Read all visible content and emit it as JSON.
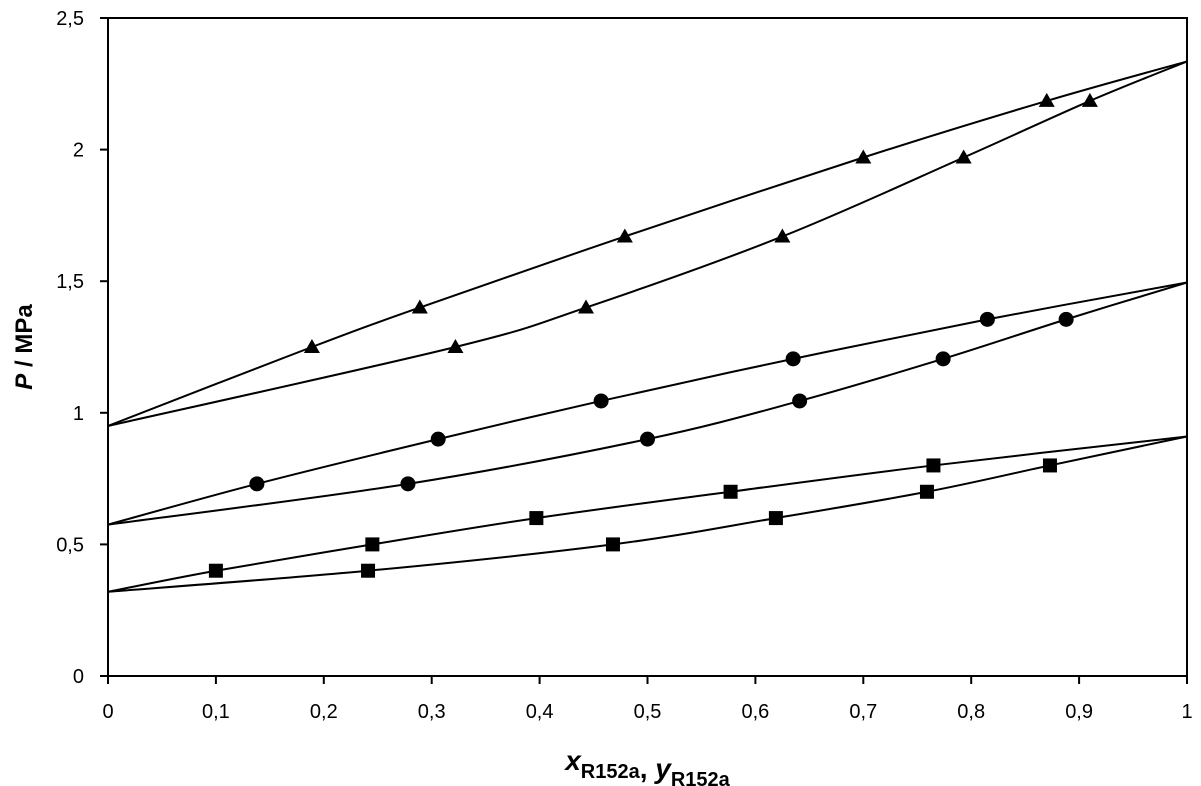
{
  "chart_data": {
    "type": "scatter",
    "title": "",
    "xlabel": {
      "parts": [
        {
          "italic": "x",
          "sub": "R152a"
        },
        {
          "text": ", "
        },
        {
          "italic": "y",
          "sub": "R152a"
        }
      ]
    },
    "ylabel": {
      "italic": "P",
      "text": " / MPa"
    },
    "xlim": [
      0,
      1
    ],
    "ylim": [
      0,
      2.5
    ],
    "xticks": [
      0,
      0.1,
      0.2,
      0.3,
      0.4,
      0.5,
      0.6,
      0.7,
      0.8,
      0.9,
      1
    ],
    "xtick_labels": [
      "0",
      "0,1",
      "0,2",
      "0,3",
      "0,4",
      "0,5",
      "0,6",
      "0,7",
      "0,8",
      "0,9",
      "1"
    ],
    "yticks": [
      0,
      0.5,
      1,
      1.5,
      2,
      2.5
    ],
    "ytick_labels": [
      "0",
      "0,5",
      "1",
      "1,5",
      "2",
      "2,5"
    ],
    "grid": false,
    "legend": "none",
    "colors": {
      "marker": "#000000",
      "line": "#000000",
      "axis": "#000000"
    },
    "series": [
      {
        "marker": "square",
        "points": [
          [
            0.1,
            0.4
          ],
          [
            0.245,
            0.5
          ],
          [
            0.397,
            0.6
          ],
          [
            0.577,
            0.7
          ],
          [
            0.765,
            0.8
          ],
          [
            0.241,
            0.4
          ],
          [
            0.468,
            0.5
          ],
          [
            0.619,
            0.6
          ],
          [
            0.759,
            0.7
          ],
          [
            0.873,
            0.8
          ]
        ],
        "curves": [
          [
            [
              0,
              0.32
            ],
            [
              0.1,
              0.4
            ],
            [
              0.245,
              0.5
            ],
            [
              0.397,
              0.6
            ],
            [
              0.577,
              0.7
            ],
            [
              0.765,
              0.8
            ],
            [
              1,
              0.91
            ]
          ],
          [
            [
              0,
              0.32
            ],
            [
              0.241,
              0.4
            ],
            [
              0.468,
              0.5
            ],
            [
              0.619,
              0.6
            ],
            [
              0.759,
              0.7
            ],
            [
              0.873,
              0.8
            ],
            [
              1,
              0.91
            ]
          ]
        ]
      },
      {
        "marker": "circle",
        "points": [
          [
            0.138,
            0.73
          ],
          [
            0.306,
            0.9
          ],
          [
            0.457,
            1.045
          ],
          [
            0.635,
            1.205
          ],
          [
            0.815,
            1.355
          ],
          [
            0.278,
            0.73
          ],
          [
            0.5,
            0.9
          ],
          [
            0.641,
            1.045
          ],
          [
            0.774,
            1.205
          ],
          [
            0.888,
            1.355
          ]
        ],
        "curves": [
          [
            [
              0,
              0.575
            ],
            [
              0.138,
              0.73
            ],
            [
              0.306,
              0.9
            ],
            [
              0.457,
              1.045
            ],
            [
              0.635,
              1.205
            ],
            [
              0.815,
              1.355
            ],
            [
              1,
              1.495
            ]
          ],
          [
            [
              0,
              0.575
            ],
            [
              0.278,
              0.73
            ],
            [
              0.5,
              0.9
            ],
            [
              0.641,
              1.045
            ],
            [
              0.774,
              1.205
            ],
            [
              0.888,
              1.355
            ],
            [
              1,
              1.495
            ]
          ]
        ]
      },
      {
        "marker": "triangle",
        "points": [
          [
            0.189,
            1.25
          ],
          [
            0.289,
            1.4
          ],
          [
            0.479,
            1.67
          ],
          [
            0.7,
            1.97
          ],
          [
            0.87,
            2.185
          ],
          [
            0.322,
            1.25
          ],
          [
            0.443,
            1.4
          ],
          [
            0.625,
            1.67
          ],
          [
            0.793,
            1.97
          ],
          [
            0.91,
            2.185
          ]
        ],
        "curves": [
          [
            [
              0,
              0.95
            ],
            [
              0.189,
              1.25
            ],
            [
              0.289,
              1.4
            ],
            [
              0.479,
              1.67
            ],
            [
              0.7,
              1.97
            ],
            [
              0.87,
              2.185
            ],
            [
              1,
              2.335
            ]
          ],
          [
            [
              0,
              0.95
            ],
            [
              0.322,
              1.25
            ],
            [
              0.443,
              1.4
            ],
            [
              0.625,
              1.67
            ],
            [
              0.793,
              1.97
            ],
            [
              0.91,
              2.185
            ],
            [
              1,
              2.335
            ]
          ]
        ]
      }
    ]
  }
}
